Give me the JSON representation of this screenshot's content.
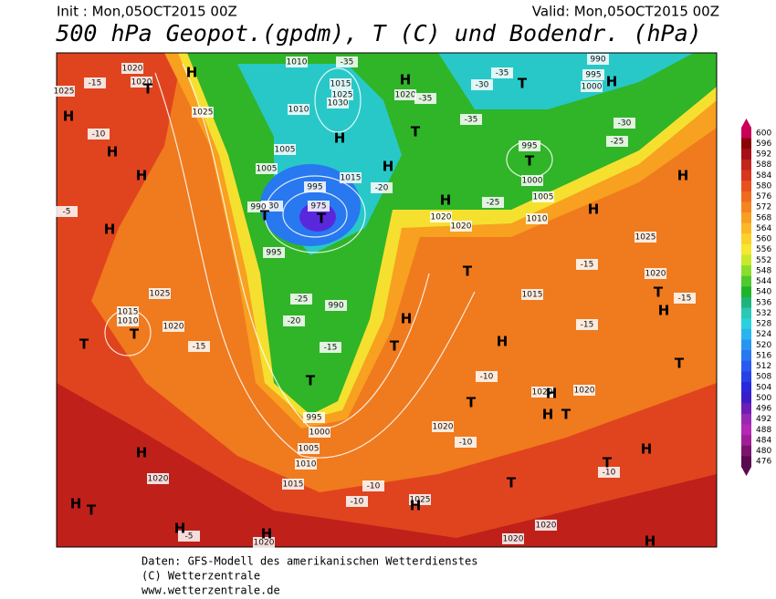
{
  "header": {
    "init": "Init : Mon,05OCT2015 00Z",
    "valid": "Valid: Mon,05OCT2015 00Z",
    "title": "500 hPa Geopot.(gpdm), T (C) und Bodendr. (hPa)"
  },
  "map": {
    "labels": [
      "1020",
      "1025",
      "1020",
      "1025",
      "1010",
      "-35",
      "1015",
      "1025",
      "1030",
      "1020",
      "-35",
      "990",
      "995",
      "1000",
      "-35",
      "-30",
      "-35",
      "-30",
      "-25",
      "995",
      "1000",
      "1005",
      "1010",
      "1020",
      "1020",
      "-25",
      "-20",
      "1015",
      "1005",
      "1005",
      "1010",
      "-30",
      "990",
      "995",
      "995",
      "975",
      "990",
      "-25",
      "-20",
      "-15",
      "1025",
      "1015",
      "1010",
      "1020",
      "-15",
      "-15",
      "1025",
      "1020",
      "-15",
      "1015",
      "-15",
      "-15",
      "-10",
      "1020",
      "1020",
      "1020",
      "-10",
      "1020",
      "1015",
      "-10",
      "-10",
      "1025",
      "1020",
      "1020",
      "1020",
      "-5",
      "-10",
      "1000",
      "1005",
      "1010",
      "995",
      "-10",
      "-5"
    ],
    "centers": [
      "H",
      "H",
      "T",
      "H",
      "H",
      "H",
      "H",
      "T",
      "H",
      "H",
      "T",
      "H",
      "T",
      "T",
      "T",
      "H",
      "T",
      "H",
      "T",
      "T",
      "H",
      "H",
      "T",
      "H",
      "T",
      "H",
      "T",
      "T",
      "H",
      "H",
      "H",
      "T",
      "H",
      "H",
      "T",
      "H",
      "H",
      "T",
      "T",
      "H",
      "T",
      "H"
    ]
  },
  "colorbar": {
    "ticks": [
      600,
      596,
      592,
      588,
      584,
      580,
      576,
      572,
      568,
      564,
      560,
      556,
      552,
      548,
      544,
      540,
      536,
      532,
      528,
      524,
      520,
      516,
      512,
      508,
      504,
      500,
      496,
      492,
      488,
      484,
      480,
      476
    ],
    "colors": [
      "#c8005a",
      "#8b0000",
      "#a50f15",
      "#c0261a",
      "#d8361e",
      "#e8501e",
      "#f06a1e",
      "#f5841e",
      "#f89e20",
      "#fbb824",
      "#fcd22a",
      "#f5e830",
      "#c8e82a",
      "#8cdc2a",
      "#50c830",
      "#1eb428",
      "#1eb47a",
      "#28c8b4",
      "#28d2dc",
      "#28b4f0",
      "#2896f0",
      "#2878f0",
      "#285af0",
      "#2840e6",
      "#2828dc",
      "#3c1ec8",
      "#6e1eb4",
      "#9628b4",
      "#b428b4",
      "#a01e96",
      "#7a146e",
      "#5a0a50"
    ]
  },
  "footer": {
    "lines": [
      "Daten: GFS-Modell des amerikanischen Wetterdienstes",
      "(C) Wetterzentrale",
      "www.wetterzentrale.de"
    ]
  }
}
